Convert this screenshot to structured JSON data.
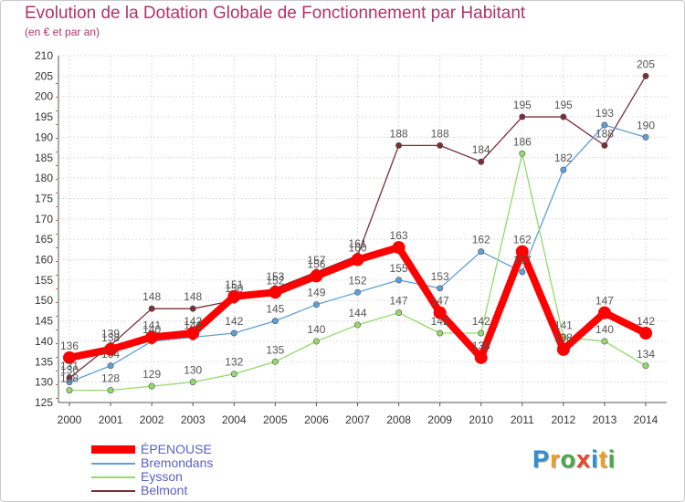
{
  "chart_data": {
    "type": "line",
    "title": "Evolution de la Dotation Globale de Fonctionnement par Habitant",
    "subtitle": "(en € et par an)",
    "xlabel": "",
    "ylabel": "",
    "ylim": [
      125,
      210
    ],
    "yticks": [
      125,
      130,
      135,
      140,
      145,
      150,
      155,
      160,
      165,
      170,
      175,
      180,
      185,
      190,
      195,
      200,
      205,
      210
    ],
    "categories": [
      "2000",
      "2001",
      "2002",
      "2003",
      "2004",
      "2005",
      "2006",
      "2007",
      "2008",
      "2009",
      "2010",
      "2011",
      "2012",
      "2013",
      "2014"
    ],
    "legend_position": "bottom-left",
    "series": [
      {
        "name": "ÉPENOUSE",
        "color": "#ff0000",
        "values": [
          136,
          138,
          141,
          142,
          151,
          152,
          156,
          160,
          163,
          147,
          136,
          162,
          138,
          147,
          142
        ]
      },
      {
        "name": "Bremondans",
        "color": "#5f9fd8",
        "values": [
          130,
          134,
          140,
          141,
          142,
          145,
          149,
          152,
          155,
          153,
          162,
          157,
          182,
          193,
          190
        ]
      },
      {
        "name": "Eysson",
        "color": "#94d96a",
        "values": [
          128,
          128,
          129,
          130,
          132,
          135,
          140,
          144,
          147,
          142,
          142,
          186,
          141,
          140,
          134
        ]
      },
      {
        "name": "Belmont",
        "color": "#7a2e3a",
        "values": [
          131,
          139,
          148,
          148,
          150,
          153,
          157,
          161,
          188,
          188,
          184,
          195,
          195,
          188,
          205
        ]
      }
    ]
  },
  "logo": {
    "text": "Proxiti",
    "letters": [
      "P",
      "r",
      "o",
      "x",
      "i",
      "t",
      "i"
    ],
    "colors": [
      "#2f8fd0",
      "#f0a020",
      "#4aa84a",
      "#e8452a",
      "#2f8fd0",
      "#f0a020",
      "#4aa84a"
    ]
  }
}
